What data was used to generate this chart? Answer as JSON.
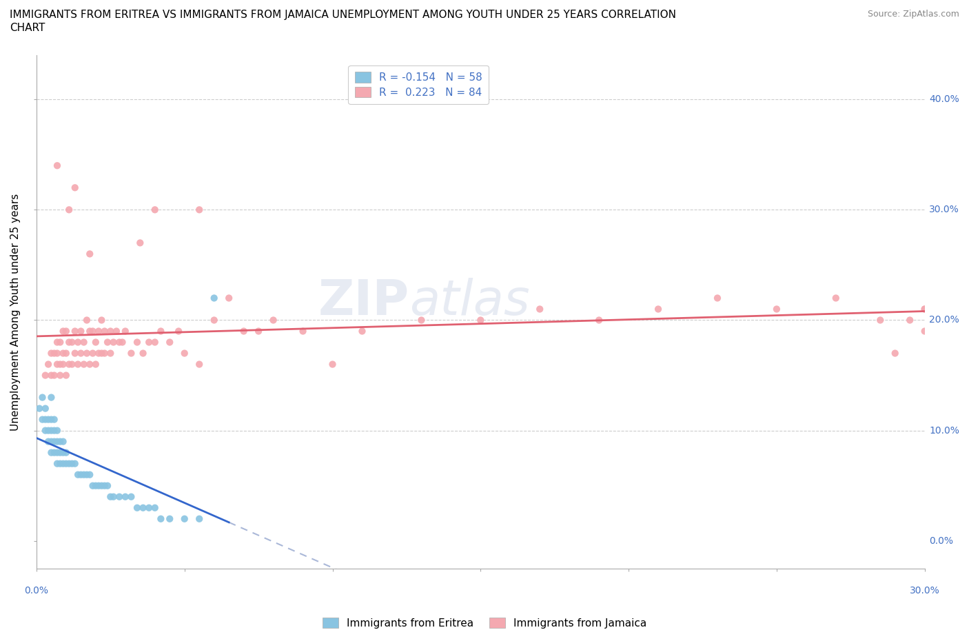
{
  "title_line1": "IMMIGRANTS FROM ERITREA VS IMMIGRANTS FROM JAMAICA UNEMPLOYMENT AMONG YOUTH UNDER 25 YEARS CORRELATION",
  "title_line2": "CHART",
  "source": "Source: ZipAtlas.com",
  "ylabel": "Unemployment Among Youth under 25 years",
  "legend_entry1": "R = -0.154   N = 58",
  "legend_entry2": "R =  0.223   N = 84",
  "legend_label1": "Immigrants from Eritrea",
  "legend_label2": "Immigrants from Jamaica",
  "color_eritrea": "#89c4e1",
  "color_jamaica": "#f4a8b0",
  "trendline_eritrea_solid": "#3366cc",
  "trendline_eritrea_dash": "#aab8d8",
  "trendline_jamaica_solid": "#e06070",
  "watermark": "ZIPatlas",
  "xmin": 0.0,
  "xmax": 0.3,
  "ymin": -0.025,
  "ymax": 0.44,
  "eritrea_x": [
    0.001,
    0.002,
    0.002,
    0.003,
    0.003,
    0.003,
    0.004,
    0.004,
    0.004,
    0.005,
    0.005,
    0.005,
    0.005,
    0.005,
    0.006,
    0.006,
    0.006,
    0.006,
    0.007,
    0.007,
    0.007,
    0.007,
    0.008,
    0.008,
    0.008,
    0.009,
    0.009,
    0.009,
    0.01,
    0.01,
    0.011,
    0.012,
    0.013,
    0.014,
    0.015,
    0.016,
    0.017,
    0.018,
    0.019,
    0.02,
    0.021,
    0.022,
    0.023,
    0.024,
    0.025,
    0.026,
    0.028,
    0.03,
    0.032,
    0.034,
    0.036,
    0.038,
    0.04,
    0.042,
    0.045,
    0.05,
    0.055,
    0.06
  ],
  "eritrea_y": [
    0.12,
    0.11,
    0.13,
    0.1,
    0.11,
    0.12,
    0.09,
    0.1,
    0.11,
    0.08,
    0.09,
    0.1,
    0.11,
    0.13,
    0.08,
    0.09,
    0.1,
    0.11,
    0.07,
    0.08,
    0.09,
    0.1,
    0.07,
    0.08,
    0.09,
    0.07,
    0.08,
    0.09,
    0.07,
    0.08,
    0.07,
    0.07,
    0.07,
    0.06,
    0.06,
    0.06,
    0.06,
    0.06,
    0.05,
    0.05,
    0.05,
    0.05,
    0.05,
    0.05,
    0.04,
    0.04,
    0.04,
    0.04,
    0.04,
    0.03,
    0.03,
    0.03,
    0.03,
    0.02,
    0.02,
    0.02,
    0.02,
    0.22
  ],
  "eritrea_outlier_x": [
    0.022
  ],
  "eritrea_outlier_y": [
    0.22
  ],
  "jamaica_x": [
    0.003,
    0.004,
    0.005,
    0.005,
    0.006,
    0.006,
    0.007,
    0.007,
    0.007,
    0.008,
    0.008,
    0.008,
    0.009,
    0.009,
    0.009,
    0.01,
    0.01,
    0.01,
    0.011,
    0.011,
    0.012,
    0.012,
    0.013,
    0.013,
    0.014,
    0.014,
    0.015,
    0.015,
    0.016,
    0.016,
    0.017,
    0.017,
    0.018,
    0.018,
    0.019,
    0.019,
    0.02,
    0.02,
    0.021,
    0.021,
    0.022,
    0.022,
    0.023,
    0.023,
    0.024,
    0.025,
    0.025,
    0.026,
    0.027,
    0.028,
    0.029,
    0.03,
    0.032,
    0.034,
    0.036,
    0.038,
    0.04,
    0.042,
    0.045,
    0.048,
    0.05,
    0.055,
    0.06,
    0.065,
    0.07,
    0.075,
    0.08,
    0.09,
    0.1,
    0.11,
    0.13,
    0.15,
    0.17,
    0.19,
    0.21,
    0.23,
    0.25,
    0.27,
    0.285,
    0.29,
    0.295,
    0.3,
    0.3,
    0.3
  ],
  "jamaica_y": [
    0.15,
    0.16,
    0.15,
    0.17,
    0.15,
    0.17,
    0.16,
    0.17,
    0.18,
    0.15,
    0.16,
    0.18,
    0.16,
    0.17,
    0.19,
    0.15,
    0.17,
    0.19,
    0.16,
    0.18,
    0.16,
    0.18,
    0.17,
    0.19,
    0.16,
    0.18,
    0.17,
    0.19,
    0.16,
    0.18,
    0.17,
    0.2,
    0.16,
    0.19,
    0.17,
    0.19,
    0.16,
    0.18,
    0.17,
    0.19,
    0.17,
    0.2,
    0.17,
    0.19,
    0.18,
    0.17,
    0.19,
    0.18,
    0.19,
    0.18,
    0.18,
    0.19,
    0.17,
    0.18,
    0.17,
    0.18,
    0.18,
    0.19,
    0.18,
    0.19,
    0.17,
    0.16,
    0.2,
    0.22,
    0.19,
    0.19,
    0.2,
    0.19,
    0.16,
    0.19,
    0.2,
    0.2,
    0.21,
    0.2,
    0.21,
    0.22,
    0.21,
    0.22,
    0.2,
    0.17,
    0.2,
    0.21,
    0.19,
    0.21
  ],
  "jamaica_outliers_x": [
    0.007,
    0.011,
    0.013,
    0.018,
    0.035,
    0.04,
    0.055
  ],
  "jamaica_outliers_y": [
    0.34,
    0.3,
    0.32,
    0.26,
    0.27,
    0.3,
    0.3
  ]
}
